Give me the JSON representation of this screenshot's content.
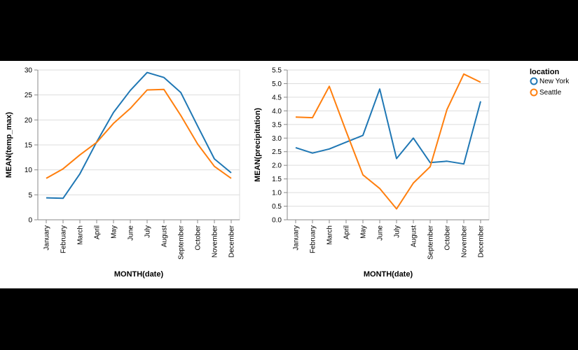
{
  "chart_data": [
    {
      "type": "line",
      "title": "",
      "xlabel": "MONTH(date)",
      "ylabel": "MEAN(temp_max)",
      "categories": [
        "January",
        "February",
        "March",
        "April",
        "May",
        "June",
        "July",
        "August",
        "September",
        "October",
        "November",
        "December"
      ],
      "ylim": [
        0,
        30
      ],
      "yticks": [
        0,
        5,
        10,
        15,
        20,
        25,
        30
      ],
      "grid": true,
      "series": [
        {
          "name": "New York",
          "color": "#1f77b4",
          "values": [
            4.4,
            4.3,
            9.2,
            15.6,
            21.5,
            25.9,
            29.5,
            28.5,
            25.5,
            18.8,
            12.2,
            9.4
          ]
        },
        {
          "name": "Seattle",
          "color": "#ff7f0e",
          "values": [
            8.3,
            10.2,
            13.0,
            15.5,
            19.3,
            22.3,
            26.0,
            26.1,
            20.9,
            15.2,
            10.7,
            8.3
          ]
        }
      ]
    },
    {
      "type": "line",
      "title": "",
      "xlabel": "MONTH(date)",
      "ylabel": "MEAN(precipitation)",
      "categories": [
        "January",
        "February",
        "March",
        "April",
        "May",
        "June",
        "July",
        "August",
        "September",
        "October",
        "November",
        "December"
      ],
      "ylim": [
        0,
        5.5
      ],
      "yticks": [
        "0.0",
        "0.5",
        "1.0",
        "1.5",
        "2.0",
        "2.5",
        "3.0",
        "3.5",
        "4.0",
        "4.5",
        "5.0",
        "5.5"
      ],
      "grid": true,
      "series": [
        {
          "name": "New York",
          "color": "#1f77b4",
          "values": [
            2.65,
            2.45,
            2.6,
            2.85,
            3.1,
            4.8,
            2.25,
            3.0,
            2.1,
            2.15,
            2.05,
            4.35
          ]
        },
        {
          "name": "Seattle",
          "color": "#ff7f0e",
          "values": [
            3.77,
            3.75,
            4.9,
            3.25,
            1.65,
            1.15,
            0.4,
            1.35,
            1.95,
            4.05,
            5.35,
            5.05
          ]
        }
      ]
    }
  ],
  "legend": {
    "title": "location",
    "placement": "right",
    "items": [
      {
        "label": "New York",
        "color": "#1f77b4"
      },
      {
        "label": "Seattle",
        "color": "#ff7f0e"
      }
    ]
  }
}
